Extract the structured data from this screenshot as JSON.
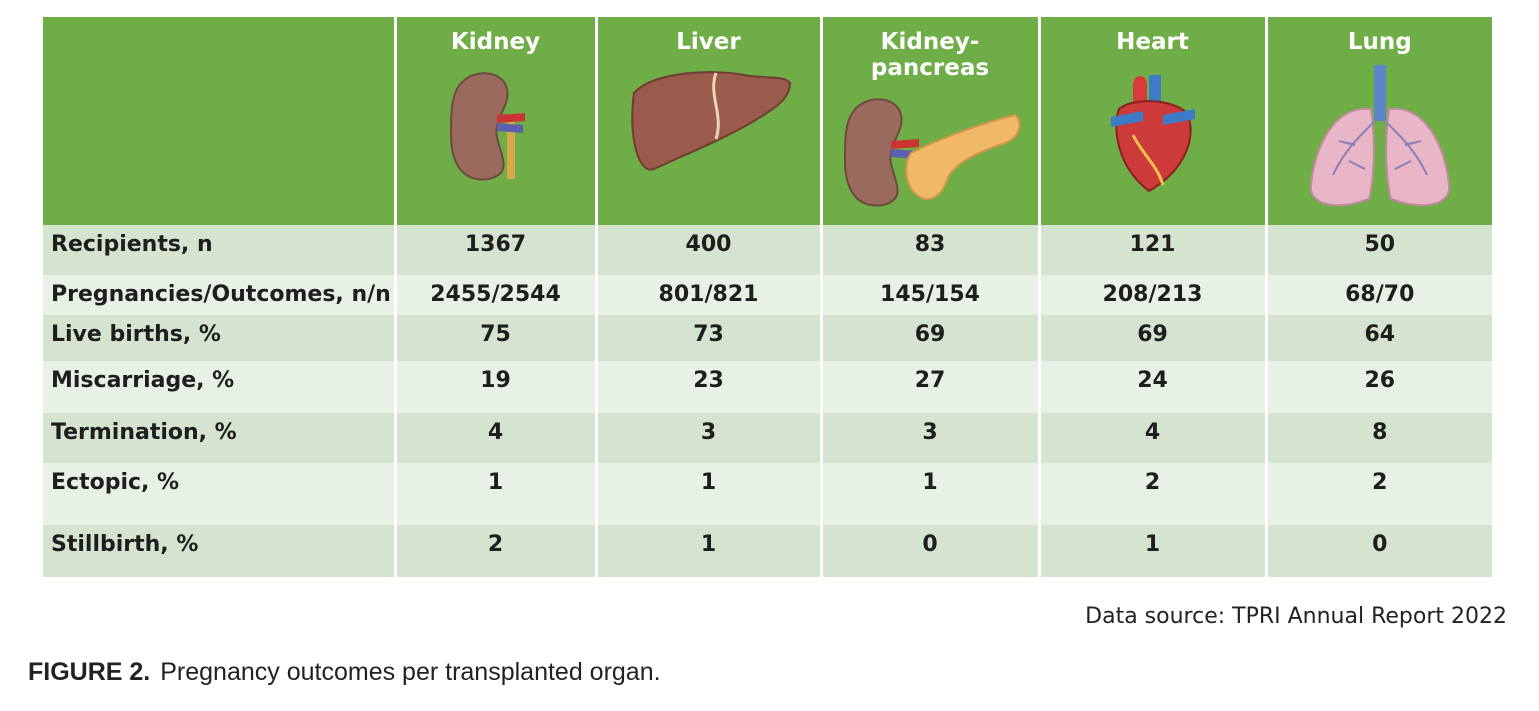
{
  "table": {
    "organs": [
      "Kidney",
      "Liver",
      "Kidney-pancreas",
      "Heart",
      "Lung"
    ],
    "rows": [
      {
        "label": "Recipients, n",
        "values": [
          "1367",
          "400",
          "83",
          "121",
          "50"
        ]
      },
      {
        "label": "Pregnancies/Outcomes, n/n",
        "values": [
          "2455/2544",
          "801/821",
          "145/154",
          "208/213",
          "68/70"
        ]
      },
      {
        "label": "Live births, %",
        "values": [
          "75",
          "73",
          "69",
          "69",
          "64"
        ]
      },
      {
        "label": "Miscarriage, %",
        "values": [
          "19",
          "23",
          "27",
          "24",
          "26"
        ]
      },
      {
        "label": "Termination, %",
        "values": [
          "4",
          "3",
          "3",
          "4",
          "8"
        ]
      },
      {
        "label": "Ectopic, %",
        "values": [
          "1",
          "1",
          "1",
          "2",
          "2"
        ]
      },
      {
        "label": "Stillbirth, %",
        "values": [
          "2",
          "1",
          "0",
          "1",
          "0"
        ]
      }
    ]
  },
  "source_note": "Data source: TPRI Annual Report 2022",
  "caption": {
    "label": "FIGURE 2.",
    "text": "Pregnancy outcomes per transplanted organ."
  },
  "icons": [
    "kidney-icon",
    "liver-icon",
    "kidney-pancreas-icon",
    "heart-icon",
    "lung-icon"
  ],
  "colors": {
    "header_green": "#6fad46",
    "row_dark": "#d4e4cf",
    "row_light": "#e8f1e5"
  }
}
